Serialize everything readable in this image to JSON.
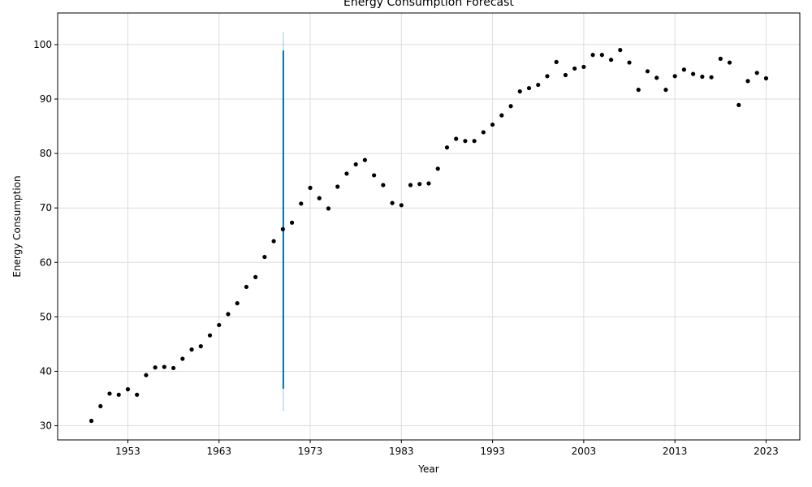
{
  "chart_data": {
    "type": "scatter",
    "title": "Energy Consumption Forecast",
    "xlabel": "Year",
    "ylabel": "Energy Consumption",
    "xlim": [
      1945.3,
      2026.7
    ],
    "ylim": [
      27.4,
      105.8
    ],
    "xticks": [
      1953,
      1963,
      1973,
      1983,
      1993,
      2003,
      2013,
      2023
    ],
    "yticks": [
      30,
      40,
      50,
      60,
      70,
      80,
      90,
      100
    ],
    "grid": true,
    "colors": {
      "points": "#000000",
      "forecast_line": "#0072B2",
      "forecast_band": "#0072B2",
      "grid": "#dddddd"
    },
    "series": [
      {
        "values": [
          {
            "x": 1949,
            "y": 30.9
          },
          {
            "x": 1950,
            "y": 33.6
          },
          {
            "x": 1951,
            "y": 35.9
          },
          {
            "x": 1952,
            "y": 35.7
          },
          {
            "x": 1953,
            "y": 36.7
          },
          {
            "x": 1954,
            "y": 35.7
          },
          {
            "x": 1955,
            "y": 39.3
          },
          {
            "x": 1956,
            "y": 40.7
          },
          {
            "x": 1957,
            "y": 40.8
          },
          {
            "x": 1958,
            "y": 40.6
          },
          {
            "x": 1959,
            "y": 42.3
          },
          {
            "x": 1960,
            "y": 44.0
          },
          {
            "x": 1961,
            "y": 44.6
          },
          {
            "x": 1962,
            "y": 46.6
          },
          {
            "x": 1963,
            "y": 48.5
          },
          {
            "x": 1964,
            "y": 50.5
          },
          {
            "x": 1965,
            "y": 52.5
          },
          {
            "x": 1966,
            "y": 55.5
          },
          {
            "x": 1967,
            "y": 57.3
          },
          {
            "x": 1968,
            "y": 61.0
          },
          {
            "x": 1969,
            "y": 63.9
          },
          {
            "x": 1970,
            "y": 66.1
          },
          {
            "x": 1971,
            "y": 67.3
          },
          {
            "x": 1972,
            "y": 70.8
          },
          {
            "x": 1973,
            "y": 73.7
          },
          {
            "x": 1974,
            "y": 71.8
          },
          {
            "x": 1975,
            "y": 69.9
          },
          {
            "x": 1976,
            "y": 73.9
          },
          {
            "x": 1977,
            "y": 76.3
          },
          {
            "x": 1978,
            "y": 78.0
          },
          {
            "x": 1979,
            "y": 78.8
          },
          {
            "x": 1980,
            "y": 76.0
          },
          {
            "x": 1981,
            "y": 74.2
          },
          {
            "x": 1982,
            "y": 70.9
          },
          {
            "x": 1983,
            "y": 70.5
          },
          {
            "x": 1984,
            "y": 74.2
          },
          {
            "x": 1985,
            "y": 74.4
          },
          {
            "x": 1986,
            "y": 74.5
          },
          {
            "x": 1987,
            "y": 77.2
          },
          {
            "x": 1988,
            "y": 81.1
          },
          {
            "x": 1989,
            "y": 82.7
          },
          {
            "x": 1990,
            "y": 82.3
          },
          {
            "x": 1991,
            "y": 82.3
          },
          {
            "x": 1992,
            "y": 83.9
          },
          {
            "x": 1993,
            "y": 85.3
          },
          {
            "x": 1994,
            "y": 87.0
          },
          {
            "x": 1995,
            "y": 88.7
          },
          {
            "x": 1996,
            "y": 91.4
          },
          {
            "x": 1997,
            "y": 92.0
          },
          {
            "x": 1998,
            "y": 92.6
          },
          {
            "x": 1999,
            "y": 94.2
          },
          {
            "x": 2000,
            "y": 96.8
          },
          {
            "x": 2001,
            "y": 94.4
          },
          {
            "x": 2002,
            "y": 95.6
          },
          {
            "x": 2003,
            "y": 95.9
          },
          {
            "x": 2004,
            "y": 98.1
          },
          {
            "x": 2005,
            "y": 98.1
          },
          {
            "x": 2006,
            "y": 97.2
          },
          {
            "x": 2007,
            "y": 99.0
          },
          {
            "x": 2008,
            "y": 96.7
          },
          {
            "x": 2009,
            "y": 91.7
          },
          {
            "x": 2010,
            "y": 95.1
          },
          {
            "x": 2011,
            "y": 93.9
          },
          {
            "x": 2012,
            "y": 91.7
          },
          {
            "x": 2013,
            "y": 94.2
          },
          {
            "x": 2014,
            "y": 95.4
          },
          {
            "x": 2015,
            "y": 94.6
          },
          {
            "x": 2016,
            "y": 94.1
          },
          {
            "x": 2017,
            "y": 94.0
          },
          {
            "x": 2018,
            "y": 97.4
          },
          {
            "x": 2019,
            "y": 96.7
          },
          {
            "x": 2020,
            "y": 88.9
          },
          {
            "x": 2021,
            "y": 93.3
          },
          {
            "x": 2022,
            "y": 94.8
          },
          {
            "x": 2023,
            "y": 93.8
          }
        ]
      }
    ],
    "forecast": {
      "x": 1970.05,
      "y_low": 36.8,
      "y_high": 98.9,
      "band_low": 32.7,
      "band_high": 102.3
    }
  }
}
